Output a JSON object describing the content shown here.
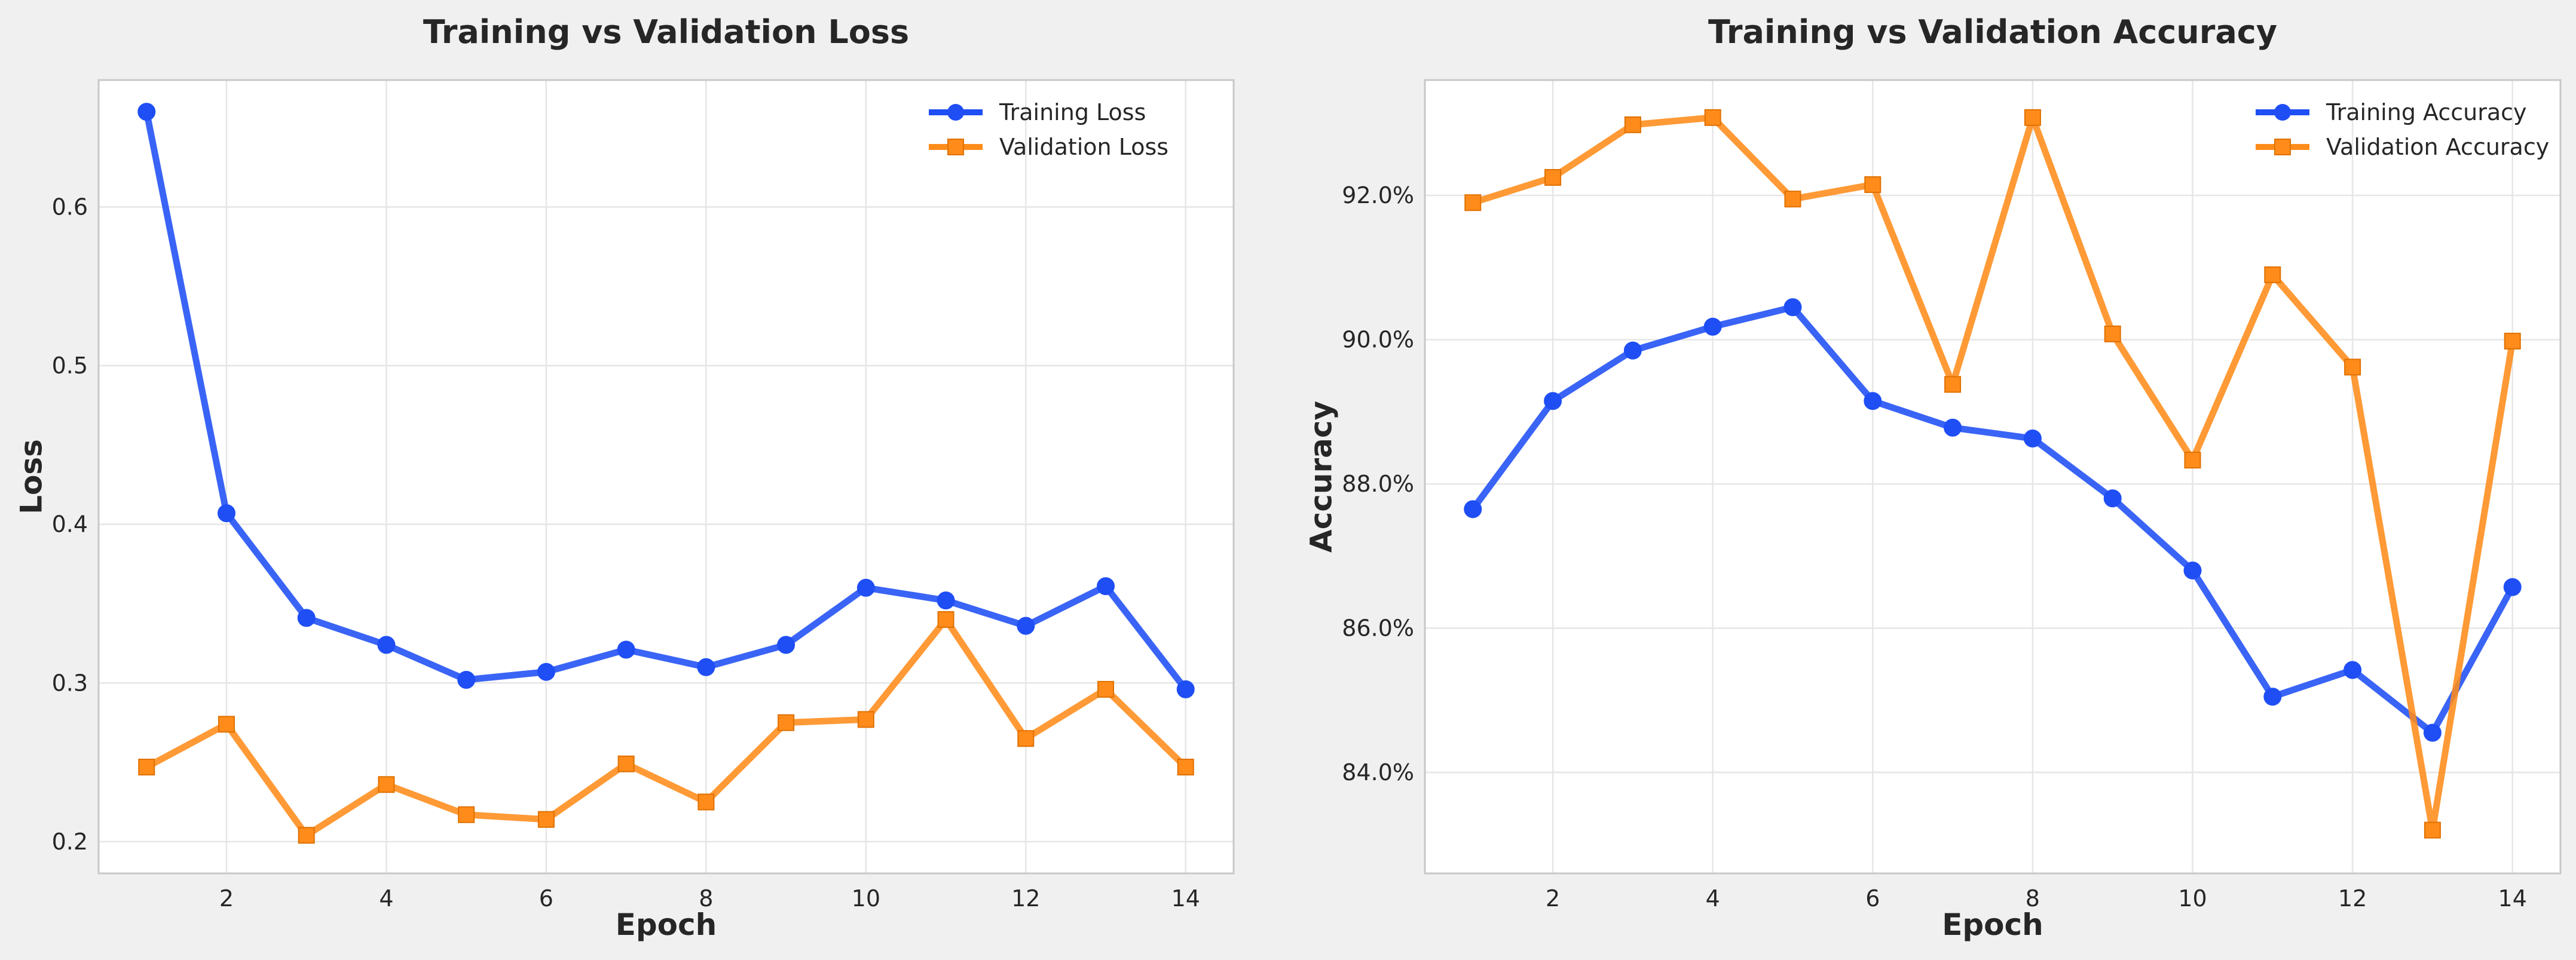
{
  "chart_data": [
    {
      "type": "line",
      "title": "Training vs Validation Loss",
      "xlabel": "Epoch",
      "ylabel": "Loss",
      "x": [
        1,
        2,
        3,
        4,
        5,
        6,
        7,
        8,
        9,
        10,
        11,
        12,
        13,
        14
      ],
      "xlim": [
        0.4,
        14.6
      ],
      "ylim": [
        0.18,
        0.68
      ],
      "xticks": [
        2,
        4,
        6,
        8,
        10,
        12,
        14
      ],
      "yticks": [
        0.2,
        0.3,
        0.4,
        0.5,
        0.6
      ],
      "ytick_format": "decimal",
      "grid": true,
      "legend": "top-right",
      "series": [
        {
          "name": "Training Loss",
          "color": "#1f4ef5",
          "marker": "circle",
          "values": [
            0.66,
            0.407,
            0.341,
            0.324,
            0.302,
            0.307,
            0.321,
            0.31,
            0.324,
            0.36,
            0.352,
            0.336,
            0.361,
            0.296
          ]
        },
        {
          "name": "Validation Loss",
          "color": "#ff8c1a",
          "marker": "square",
          "values": [
            0.247,
            0.274,
            0.204,
            0.236,
            0.217,
            0.214,
            0.249,
            0.225,
            0.275,
            0.277,
            0.34,
            0.265,
            0.296,
            0.247
          ]
        }
      ]
    },
    {
      "type": "line",
      "title": "Training vs Validation Accuracy",
      "xlabel": "Epoch",
      "ylabel": "Accuracy",
      "x": [
        1,
        2,
        3,
        4,
        5,
        6,
        7,
        8,
        9,
        10,
        11,
        12,
        13,
        14
      ],
      "xlim": [
        0.4,
        14.6
      ],
      "ylim": [
        82.6,
        93.6
      ],
      "xticks": [
        2,
        4,
        6,
        8,
        10,
        12,
        14
      ],
      "yticks": [
        84,
        86,
        88,
        90,
        92
      ],
      "ytick_format": "percent",
      "grid": true,
      "legend": "top-right",
      "series": [
        {
          "name": "Training Accuracy",
          "color": "#1f4ef5",
          "marker": "circle",
          "values": [
            87.65,
            89.15,
            89.85,
            90.18,
            90.45,
            89.15,
            88.78,
            88.63,
            87.8,
            86.8,
            85.05,
            85.42,
            84.55,
            86.57
          ]
        },
        {
          "name": "Validation Accuracy",
          "color": "#ff8c1a",
          "marker": "square",
          "values": [
            91.9,
            92.25,
            92.98,
            93.08,
            91.95,
            92.15,
            89.38,
            93.08,
            90.08,
            88.33,
            90.9,
            89.62,
            83.2,
            89.98
          ]
        }
      ]
    }
  ]
}
